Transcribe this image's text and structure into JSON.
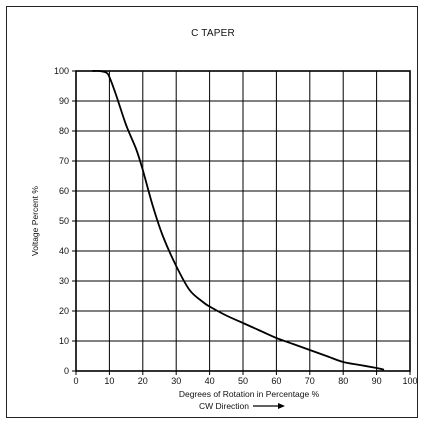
{
  "chart_data": {
    "type": "line",
    "title": "C TAPER",
    "xlabel": "Degrees of Rotation in Percentage %",
    "xlabel2": "CW Direction",
    "ylabel": "Voltage Percent %",
    "xlim": [
      0,
      100
    ],
    "ylim": [
      0,
      100
    ],
    "x_ticks": [
      0,
      10,
      20,
      30,
      40,
      50,
      60,
      70,
      80,
      90,
      100
    ],
    "y_ticks": [
      0,
      10,
      20,
      30,
      40,
      50,
      60,
      70,
      80,
      90,
      100
    ],
    "grid": true,
    "series": [
      {
        "x": [
          5,
          7,
          9,
          10,
          12,
          15,
          18,
          20,
          23,
          26,
          30,
          34,
          38,
          40,
          45,
          50,
          55,
          60,
          65,
          70,
          75,
          80,
          85,
          90,
          92
        ],
        "y": [
          100,
          100,
          99.5,
          98,
          92,
          82,
          74,
          67,
          55,
          45,
          35,
          27,
          23,
          21.5,
          18.5,
          16,
          13.5,
          11,
          9,
          7,
          5,
          3,
          2,
          1,
          0.5
        ],
        "color": "#000000"
      }
    ]
  }
}
